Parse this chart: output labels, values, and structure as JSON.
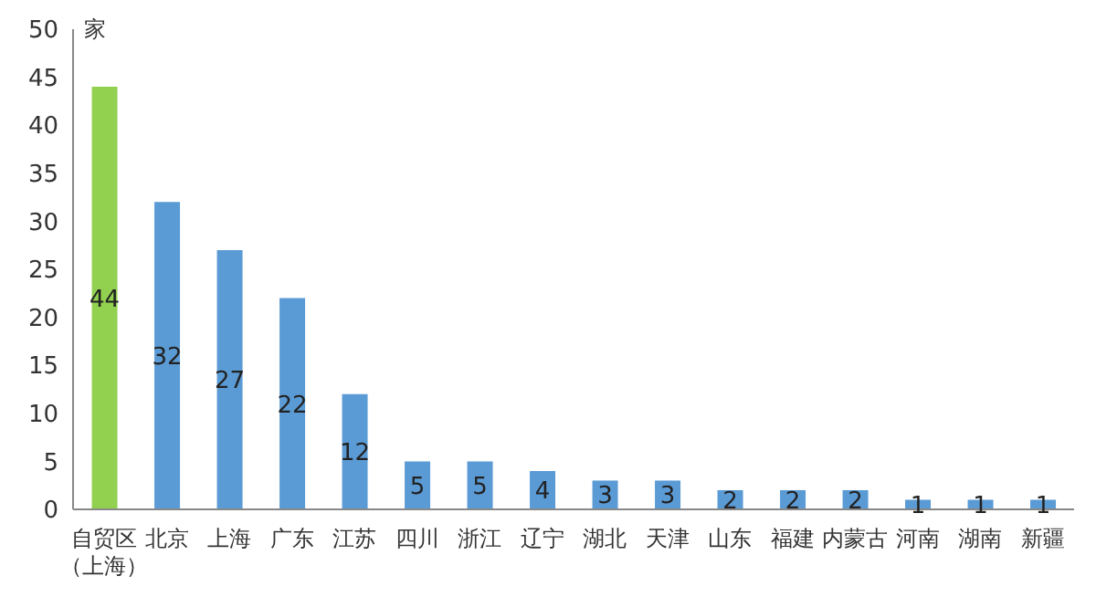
{
  "chart_data": {
    "type": "bar",
    "ylabel": "家",
    "categories": [
      "自贸区（上海）",
      "北京",
      "上海",
      "广东",
      "江苏",
      "四川",
      "浙江",
      "辽宁",
      "湖北",
      "天津",
      "山东",
      "福建",
      "内蒙古",
      "河南",
      "湖南",
      "新疆"
    ],
    "values": [
      44,
      32,
      27,
      22,
      12,
      5,
      5,
      4,
      3,
      3,
      2,
      2,
      2,
      1,
      1,
      1
    ],
    "colors": [
      "#92d050",
      "#5b9bd5",
      "#5b9bd5",
      "#5b9bd5",
      "#5b9bd5",
      "#5b9bd5",
      "#5b9bd5",
      "#5b9bd5",
      "#5b9bd5",
      "#5b9bd5",
      "#5b9bd5",
      "#5b9bd5",
      "#5b9bd5",
      "#5b9bd5",
      "#5b9bd5",
      "#5b9bd5"
    ],
    "ylim": [
      0,
      50
    ],
    "yticks": [
      0,
      5,
      10,
      15,
      20,
      25,
      30,
      35,
      40,
      45,
      50
    ],
    "data_labels": true,
    "grid": false,
    "legend": false
  }
}
